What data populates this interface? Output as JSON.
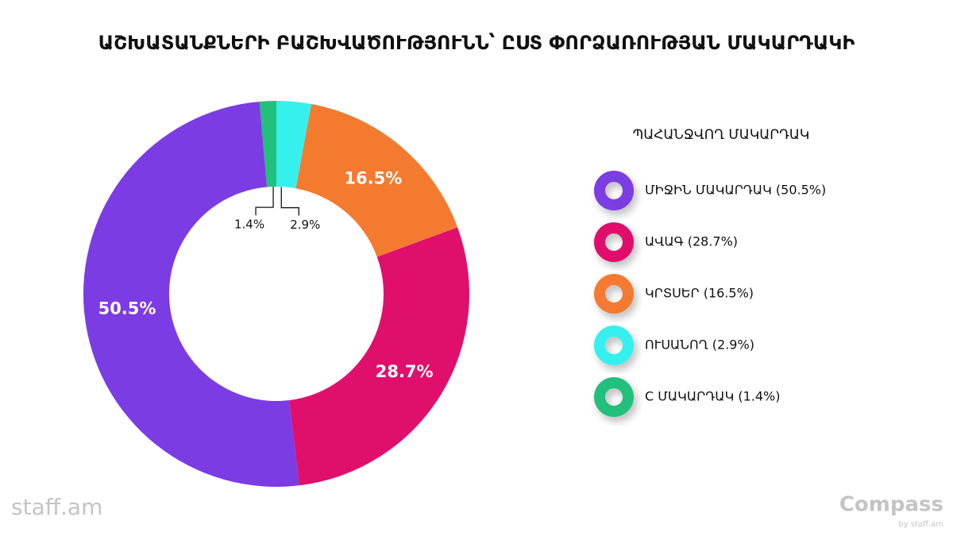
{
  "chart_data": {
    "type": "donut",
    "title": "ԱՇԽԱՏԱՆՔՆԵՐԻ ԲԱՇԽՎԱԾՈՒԹՅՈՒՆՆ՝ ԸՍՏ ՓՈՐՁԱՌՈՒԹՅԱՆ ՄԱԿԱՐԴԱԿԻ",
    "legend_title": "ՊԱՀԱՆՋՎՈՂ ՄԱԿԱՐԴԱԿ",
    "categories": [
      "ՄԻՋԻՆ ՄԱԿԱՐԴԱԿ (50.5%)",
      "ԱՎԱԳ (28.7%)",
      "ԿՐՏՍԵՐ (16.5%)",
      "ՈՒՍԱՆՈՂ (2.9%)",
      "C ՄԱԿԱՐԴԱԿ (1.4%)"
    ],
    "values": [
      50.5,
      28.7,
      16.5,
      2.9,
      1.4
    ],
    "value_labels": [
      "50.5%",
      "28.7%",
      "16.5%",
      "2.9%",
      "1.4%"
    ],
    "colors": [
      "#7c3ce3",
      "#e00f6c",
      "#f47a30",
      "#36f0ee",
      "#21c07b"
    ],
    "legend": "right"
  },
  "logos": {
    "left": "staff.am",
    "right": "Compass",
    "right_sub": "by staff.am"
  }
}
